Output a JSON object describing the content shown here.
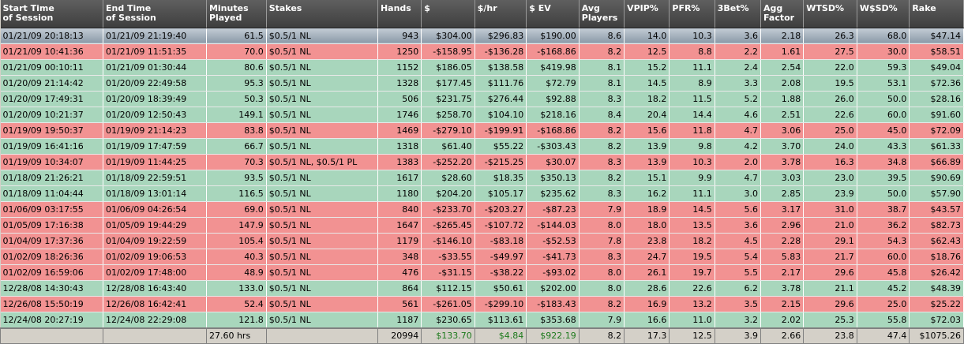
{
  "columns": [
    "Start Time\nof Session",
    "End Time\nof Session",
    "Minutes\nPlayed",
    "Stakes",
    "Hands",
    "$",
    "$/hr",
    "$ EV",
    "Avg\nPlayers",
    "VPIP%",
    "PFR%",
    "3Bet%",
    "Agg\nFactor",
    "WTSD%",
    "W$SD%",
    "Rake"
  ],
  "rows": [
    {
      "result": "sel",
      "cells": [
        "01/21/09 20:18:13",
        "01/21/09 21:19:40",
        "61.5",
        "$0.5/1 NL",
        "943",
        "$304.00",
        "$296.83",
        "$190.00",
        "8.6",
        "14.0",
        "10.3",
        "3.6",
        "2.18",
        "26.3",
        "68.0",
        "$47.14"
      ]
    },
    {
      "result": "red",
      "cells": [
        "01/21/09 10:41:36",
        "01/21/09 11:51:35",
        "70.0",
        "$0.5/1 NL",
        "1250",
        "-$158.95",
        "-$136.28",
        "-$168.86",
        "8.2",
        "12.5",
        "8.8",
        "2.2",
        "1.61",
        "27.5",
        "30.0",
        "$58.51"
      ]
    },
    {
      "result": "green",
      "cells": [
        "01/21/09 00:10:11",
        "01/21/09 01:30:44",
        "80.6",
        "$0.5/1 NL",
        "1152",
        "$186.05",
        "$138.58",
        "$419.98",
        "8.1",
        "15.2",
        "11.1",
        "2.4",
        "2.54",
        "22.0",
        "59.3",
        "$49.04"
      ]
    },
    {
      "result": "green",
      "cells": [
        "01/20/09 21:14:42",
        "01/20/09 22:49:58",
        "95.3",
        "$0.5/1 NL",
        "1328",
        "$177.45",
        "$111.76",
        "$72.79",
        "8.1",
        "14.5",
        "8.9",
        "3.3",
        "2.08",
        "19.5",
        "53.1",
        "$72.36"
      ]
    },
    {
      "result": "green",
      "cells": [
        "01/20/09 17:49:31",
        "01/20/09 18:39:49",
        "50.3",
        "$0.5/1 NL",
        "506",
        "$231.75",
        "$276.44",
        "$92.88",
        "8.3",
        "18.2",
        "11.5",
        "5.2",
        "1.88",
        "26.0",
        "50.0",
        "$28.16"
      ]
    },
    {
      "result": "green",
      "cells": [
        "01/20/09 10:21:37",
        "01/20/09 12:50:43",
        "149.1",
        "$0.5/1 NL",
        "1746",
        "$258.70",
        "$104.10",
        "$218.16",
        "8.4",
        "20.4",
        "14.4",
        "4.6",
        "2.51",
        "22.6",
        "60.0",
        "$91.60"
      ]
    },
    {
      "result": "red",
      "cells": [
        "01/19/09 19:50:37",
        "01/19/09 21:14:23",
        "83.8",
        "$0.5/1 NL",
        "1469",
        "-$279.10",
        "-$199.91",
        "-$168.86",
        "8.2",
        "15.6",
        "11.8",
        "4.7",
        "3.06",
        "25.0",
        "45.0",
        "$72.09"
      ]
    },
    {
      "result": "green",
      "cells": [
        "01/19/09 16:41:16",
        "01/19/09 17:47:59",
        "66.7",
        "$0.5/1 NL",
        "1318",
        "$61.40",
        "$55.22",
        "-$303.43",
        "8.2",
        "13.9",
        "9.8",
        "4.2",
        "3.70",
        "24.0",
        "43.3",
        "$61.33"
      ]
    },
    {
      "result": "red",
      "cells": [
        "01/19/09 10:34:07",
        "01/19/09 11:44:25",
        "70.3",
        "$0.5/1 NL, $0.5/1 PL",
        "1383",
        "-$252.20",
        "-$215.25",
        "$30.07",
        "8.3",
        "13.9",
        "10.3",
        "2.0",
        "3.78",
        "16.3",
        "34.8",
        "$66.89"
      ]
    },
    {
      "result": "green",
      "cells": [
        "01/18/09 21:26:21",
        "01/18/09 22:59:51",
        "93.5",
        "$0.5/1 NL",
        "1617",
        "$28.60",
        "$18.35",
        "$350.13",
        "8.2",
        "15.1",
        "9.9",
        "4.7",
        "3.03",
        "23.0",
        "39.5",
        "$90.69"
      ]
    },
    {
      "result": "green",
      "cells": [
        "01/18/09 11:04:44",
        "01/18/09 13:01:14",
        "116.5",
        "$0.5/1 NL",
        "1180",
        "$204.20",
        "$105.17",
        "$235.62",
        "8.3",
        "16.2",
        "11.1",
        "3.0",
        "2.85",
        "23.9",
        "50.0",
        "$57.90"
      ]
    },
    {
      "result": "red",
      "cells": [
        "01/06/09 03:17:55",
        "01/06/09 04:26:54",
        "69.0",
        "$0.5/1 NL",
        "840",
        "-$233.70",
        "-$203.27",
        "-$87.23",
        "7.9",
        "18.9",
        "14.5",
        "5.6",
        "3.17",
        "31.0",
        "38.7",
        "$43.57"
      ]
    },
    {
      "result": "red",
      "cells": [
        "01/05/09 17:16:38",
        "01/05/09 19:44:29",
        "147.9",
        "$0.5/1 NL",
        "1647",
        "-$265.45",
        "-$107.72",
        "-$144.03",
        "8.0",
        "18.0",
        "13.5",
        "3.6",
        "2.96",
        "21.0",
        "36.2",
        "$82.73"
      ]
    },
    {
      "result": "red",
      "cells": [
        "01/04/09 17:37:36",
        "01/04/09 19:22:59",
        "105.4",
        "$0.5/1 NL",
        "1179",
        "-$146.10",
        "-$83.18",
        "-$52.53",
        "7.8",
        "23.8",
        "18.2",
        "4.5",
        "2.28",
        "29.1",
        "54.3",
        "$62.43"
      ]
    },
    {
      "result": "red",
      "cells": [
        "01/02/09 18:26:36",
        "01/02/09 19:06:53",
        "40.3",
        "$0.5/1 NL",
        "348",
        "-$33.55",
        "-$49.97",
        "-$41.73",
        "8.3",
        "24.7",
        "19.5",
        "5.4",
        "5.83",
        "21.7",
        "60.0",
        "$18.76"
      ]
    },
    {
      "result": "red",
      "cells": [
        "01/02/09 16:59:06",
        "01/02/09 17:48:00",
        "48.9",
        "$0.5/1 NL",
        "476",
        "-$31.15",
        "-$38.22",
        "-$93.02",
        "8.0",
        "26.1",
        "19.7",
        "5.5",
        "2.17",
        "29.6",
        "45.8",
        "$26.42"
      ]
    },
    {
      "result": "green",
      "cells": [
        "12/28/08 14:30:43",
        "12/28/08 16:43:40",
        "133.0",
        "$0.5/1 NL",
        "864",
        "$112.15",
        "$50.61",
        "$202.00",
        "8.0",
        "28.6",
        "22.6",
        "6.2",
        "3.78",
        "21.1",
        "45.2",
        "$48.39"
      ]
    },
    {
      "result": "red",
      "cells": [
        "12/26/08 15:50:19",
        "12/26/08 16:42:41",
        "52.4",
        "$0.5/1 NL",
        "561",
        "-$261.05",
        "-$299.10",
        "-$183.43",
        "8.2",
        "16.9",
        "13.2",
        "3.5",
        "2.15",
        "29.6",
        "25.0",
        "$25.22"
      ]
    },
    {
      "result": "green",
      "cells": [
        "12/24/08 20:27:19",
        "12/24/08 22:29:08",
        "121.8",
        "$0.5/1 NL",
        "1187",
        "$230.65",
        "$113.61",
        "$353.68",
        "7.9",
        "16.6",
        "11.0",
        "3.2",
        "2.02",
        "25.3",
        "55.8",
        "$72.03"
      ]
    }
  ],
  "totals": [
    "",
    "",
    "27.60 hrs",
    "",
    "20994",
    "$133.70",
    "$4.84",
    "$922.19",
    "8.2",
    "17.3",
    "12.5",
    "3.9",
    "2.66",
    "23.8",
    "47.4",
    "$1075.26"
  ],
  "colors": {
    "win": "#a8d6bc",
    "loss": "#f29292",
    "header": "#4f4f4f",
    "total_positive": "#1c7a1c"
  }
}
